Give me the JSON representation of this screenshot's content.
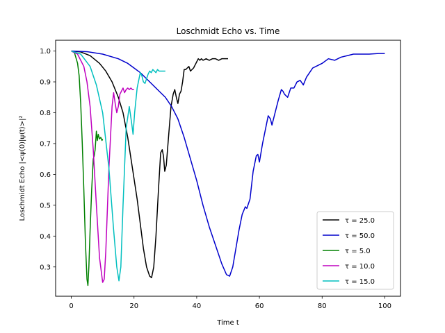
{
  "chart_data": {
    "type": "line",
    "title": "Loschmidt Echo vs. Time",
    "xlabel": "Time t",
    "ylabel": "Loschmidt Echo |<ψ(0)|ψ(t)>|²",
    "xlim": [
      -5,
      105
    ],
    "ylim": [
      0.205,
      1.035
    ],
    "xticks": [
      0,
      20,
      40,
      60,
      80,
      100
    ],
    "yticks": [
      0.3,
      0.4,
      0.5,
      0.6,
      0.7,
      0.8,
      0.9,
      1.0
    ],
    "xtick_labels": [
      "0",
      "20",
      "40",
      "60",
      "80",
      "100"
    ],
    "ytick_labels": [
      "0.3",
      "0.4",
      "0.5",
      "0.6",
      "0.7",
      "0.8",
      "0.9",
      "1.0"
    ],
    "grid": false,
    "legend_position": "lower-right",
    "series": [
      {
        "name": "τ = 25.0",
        "color": "#000000",
        "x": [
          0,
          3,
          6,
          9,
          11,
          13,
          15,
          16.5,
          18,
          19.5,
          21,
          22,
          23,
          24,
          25,
          25.6,
          26.3,
          27,
          27.8,
          28.5,
          29,
          29.4,
          29.8,
          30.3,
          31,
          31.8,
          32.5,
          33,
          33.5,
          34,
          34.5,
          35,
          35.5,
          36,
          36.5,
          37,
          37.5,
          38,
          38.5,
          39,
          39.5,
          40,
          40.5,
          41,
          41.5,
          42,
          43,
          44,
          45,
          46,
          47,
          48,
          49,
          50
        ],
        "y": [
          1.0,
          0.997,
          0.985,
          0.96,
          0.935,
          0.9,
          0.85,
          0.8,
          0.72,
          0.62,
          0.52,
          0.44,
          0.36,
          0.3,
          0.27,
          0.265,
          0.3,
          0.4,
          0.55,
          0.67,
          0.68,
          0.66,
          0.61,
          0.63,
          0.72,
          0.82,
          0.86,
          0.875,
          0.85,
          0.83,
          0.86,
          0.87,
          0.9,
          0.94,
          0.94,
          0.945,
          0.95,
          0.935,
          0.94,
          0.945,
          0.955,
          0.965,
          0.975,
          0.97,
          0.975,
          0.97,
          0.975,
          0.97,
          0.975,
          0.975,
          0.97,
          0.975,
          0.975,
          0.975
        ]
      },
      {
        "name": "τ = 50.0",
        "color": "#0000cc",
        "x": [
          0,
          5,
          10,
          15,
          18,
          20,
          22,
          25,
          28,
          30,
          32,
          34,
          36,
          38,
          40,
          42,
          44,
          46,
          48,
          49.5,
          50.5,
          51.5,
          52.5,
          53.5,
          54.5,
          55.5,
          56,
          57,
          58,
          59,
          59.5,
          60,
          61,
          62,
          62.8,
          63.5,
          64,
          65,
          66,
          67,
          67.5,
          68,
          69,
          70,
          71,
          72,
          73,
          74,
          75,
          76,
          77,
          78,
          80,
          82,
          84,
          86,
          88,
          90,
          92,
          95,
          98,
          100
        ],
        "y": [
          1.0,
          0.998,
          0.99,
          0.975,
          0.96,
          0.945,
          0.93,
          0.9,
          0.87,
          0.85,
          0.82,
          0.78,
          0.72,
          0.65,
          0.58,
          0.5,
          0.43,
          0.37,
          0.31,
          0.275,
          0.27,
          0.3,
          0.36,
          0.42,
          0.47,
          0.495,
          0.49,
          0.52,
          0.61,
          0.66,
          0.665,
          0.64,
          0.7,
          0.75,
          0.79,
          0.78,
          0.76,
          0.8,
          0.84,
          0.875,
          0.87,
          0.86,
          0.85,
          0.88,
          0.88,
          0.9,
          0.905,
          0.89,
          0.915,
          0.93,
          0.945,
          0.95,
          0.96,
          0.975,
          0.97,
          0.98,
          0.985,
          0.99,
          0.99,
          0.99,
          0.992,
          0.992
        ]
      },
      {
        "name": "τ = 5.0",
        "color": "#008000",
        "x": [
          0,
          1,
          2,
          2.5,
          3,
          3.5,
          4,
          4.5,
          5,
          5.3,
          5.6,
          6,
          6.5,
          7,
          7.3,
          7.6,
          8,
          8.3,
          8.6,
          9,
          9.4,
          9.8,
          10
        ],
        "y": [
          1.0,
          0.995,
          0.96,
          0.92,
          0.83,
          0.7,
          0.55,
          0.38,
          0.26,
          0.24,
          0.3,
          0.42,
          0.55,
          0.65,
          0.66,
          0.68,
          0.74,
          0.71,
          0.73,
          0.715,
          0.72,
          0.71,
          0.715
        ]
      },
      {
        "name": "τ = 10.0",
        "color": "#bf00bf",
        "x": [
          0,
          2,
          4,
          5,
          6,
          7,
          8,
          9,
          10,
          10.5,
          11,
          12,
          13,
          13.5,
          14,
          14.5,
          15,
          15.5,
          16,
          16.5,
          17,
          17.5,
          18,
          18.5,
          19,
          19.5,
          20
        ],
        "y": [
          1.0,
          0.99,
          0.95,
          0.9,
          0.82,
          0.68,
          0.5,
          0.33,
          0.25,
          0.26,
          0.35,
          0.62,
          0.82,
          0.865,
          0.83,
          0.8,
          0.82,
          0.86,
          0.87,
          0.88,
          0.865,
          0.875,
          0.88,
          0.875,
          0.88,
          0.875,
          0.875
        ]
      },
      {
        "name": "τ = 15.0",
        "color": "#00bfbf",
        "x": [
          0,
          3,
          6,
          8,
          10,
          12,
          13.5,
          14.5,
          15.2,
          15.8,
          16.5,
          17.5,
          18.5,
          19.2,
          19.7,
          20.2,
          21,
          22,
          22.5,
          23,
          23.5,
          24,
          24.5,
          25,
          25.5,
          26,
          26.5,
          27,
          27.5,
          28,
          29,
          30
        ],
        "y": [
          1.0,
          0.99,
          0.95,
          0.89,
          0.8,
          0.62,
          0.42,
          0.3,
          0.255,
          0.3,
          0.5,
          0.75,
          0.82,
          0.77,
          0.73,
          0.8,
          0.88,
          0.93,
          0.92,
          0.9,
          0.895,
          0.91,
          0.925,
          0.935,
          0.93,
          0.94,
          0.935,
          0.93,
          0.94,
          0.935,
          0.935,
          0.935
        ]
      }
    ]
  }
}
